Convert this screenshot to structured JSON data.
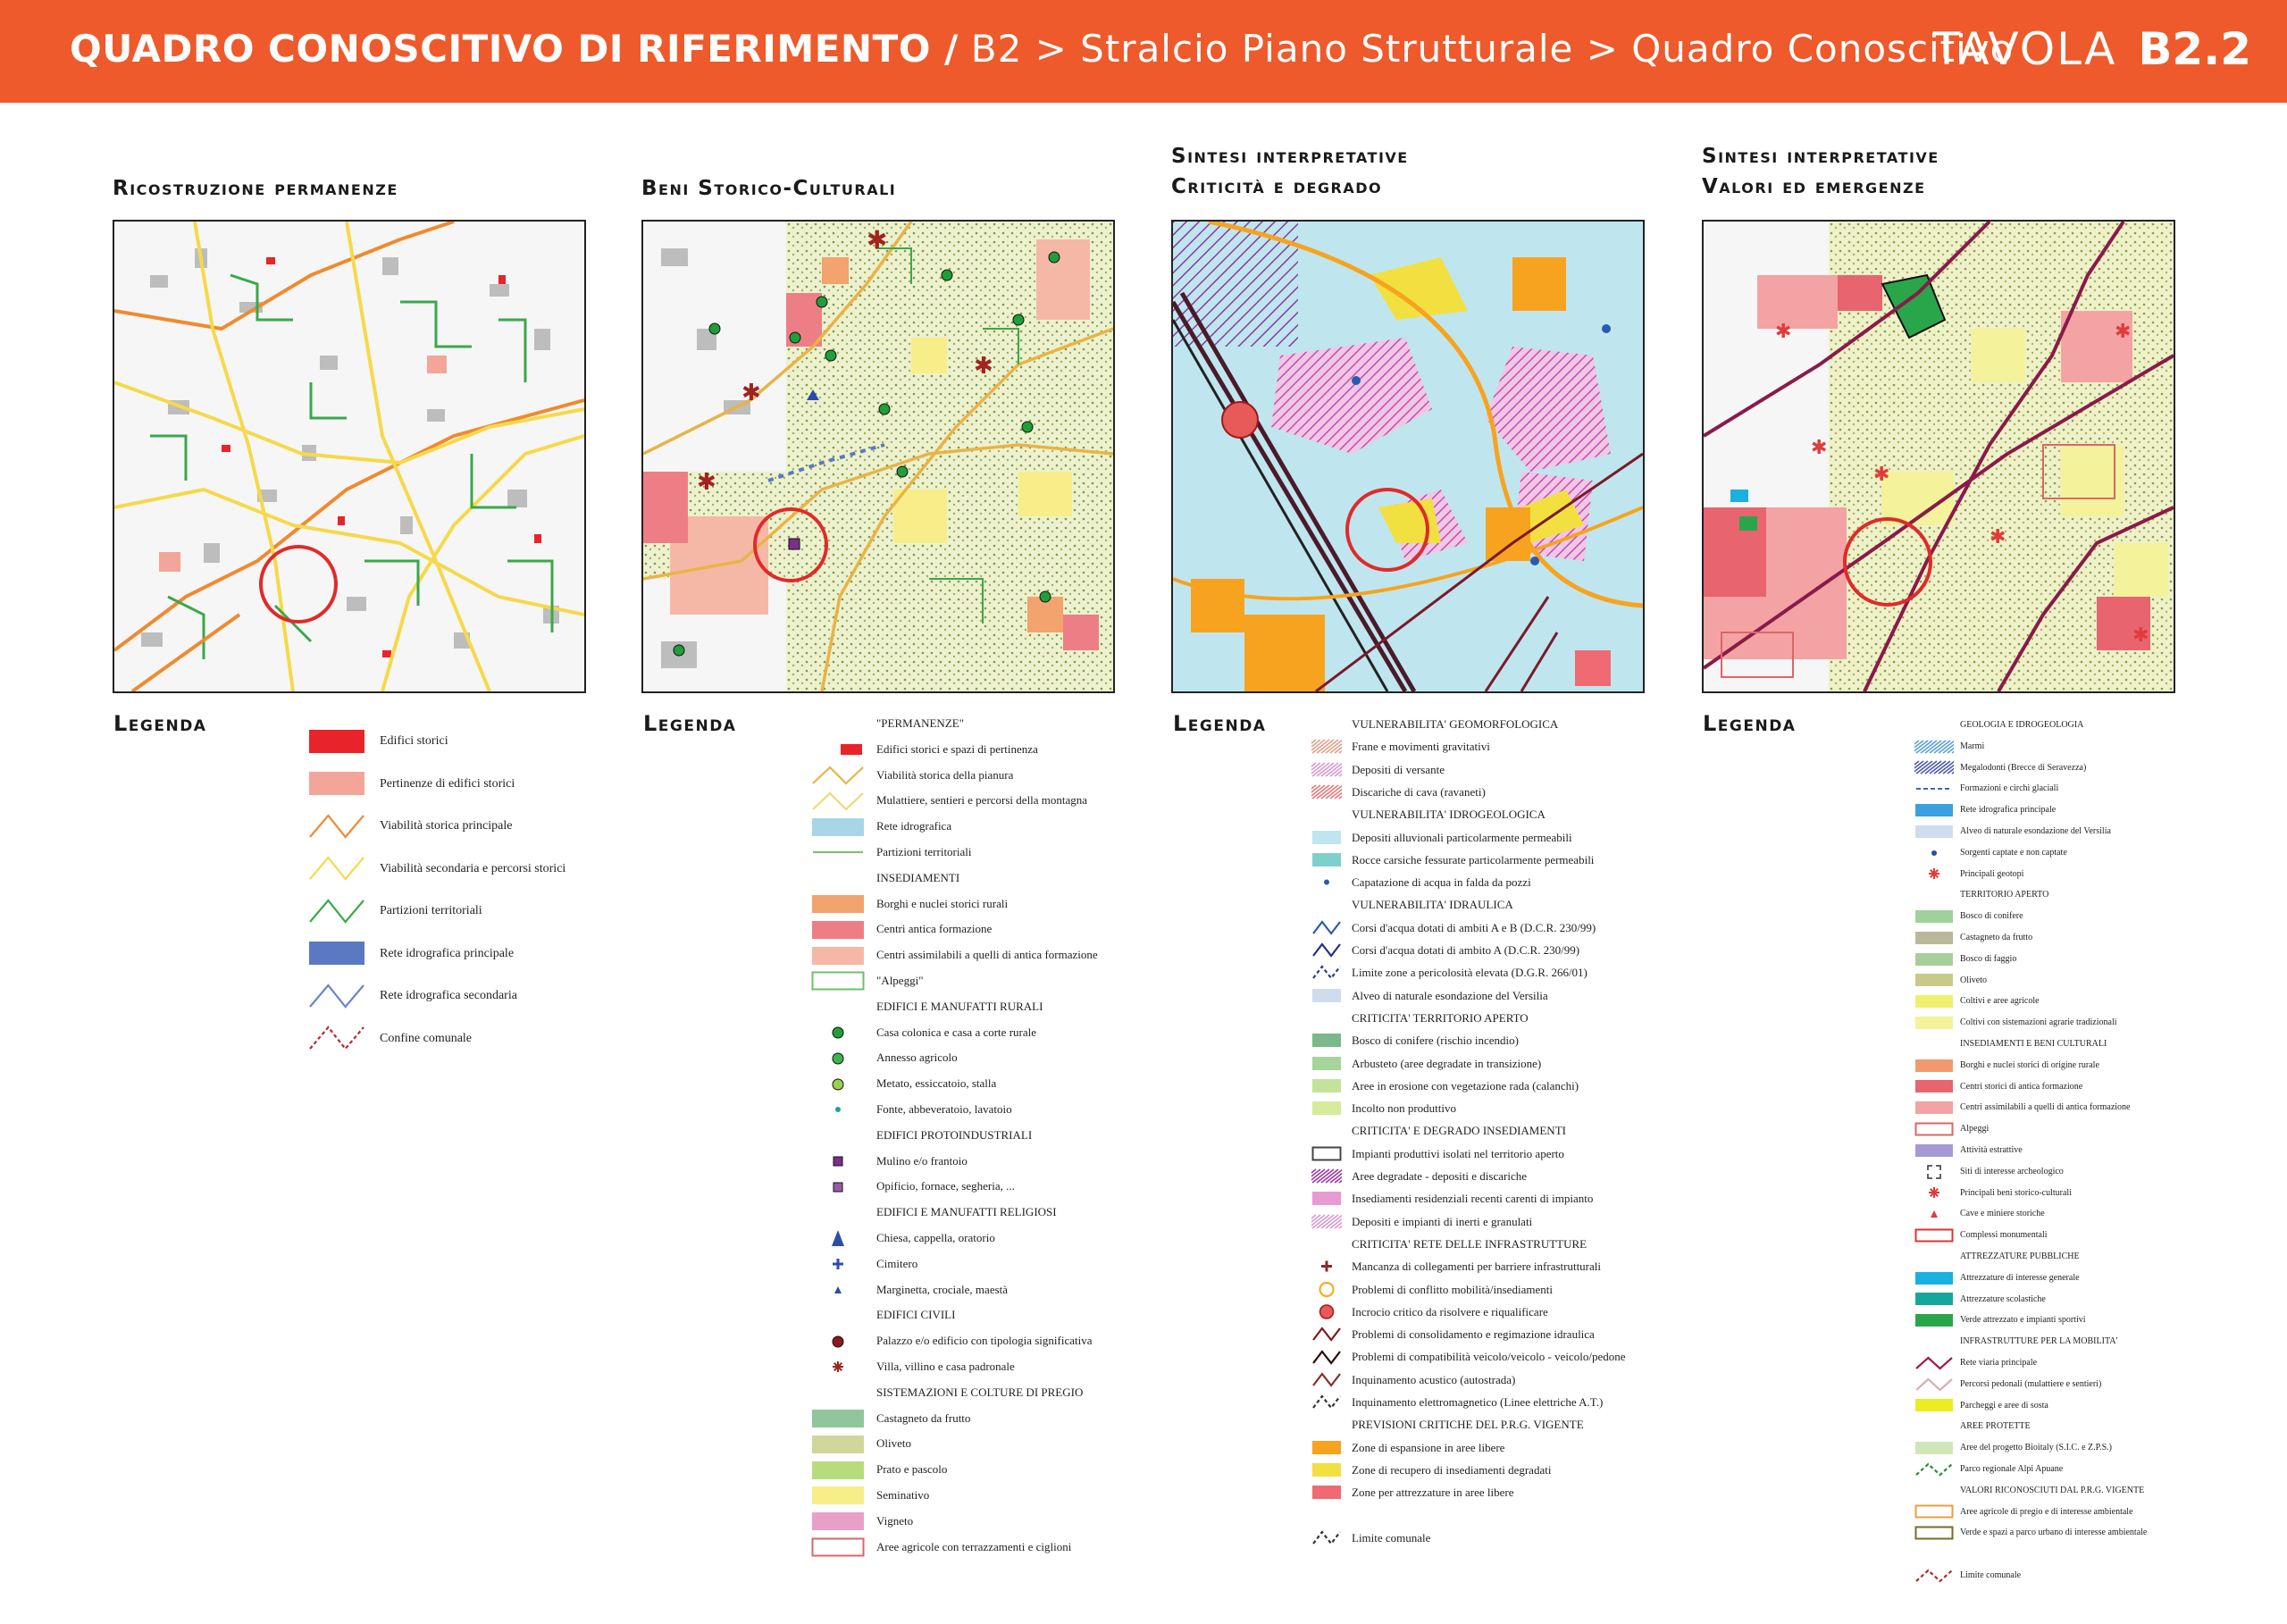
{
  "header": {
    "main_title": "QUADRO CONOSCITIVO DI RIFERIMENTO /",
    "path": "B2 > Stralcio Piano Strutturale > Quadro Conoscitivo",
    "tavola_label": "TAVOLA",
    "tavola_number": "B2.2"
  },
  "panels": [
    {
      "title_1": "",
      "title_2": "Ricostruzione permanenze"
    },
    {
      "title_1": "",
      "title_2": "Beni Storico-Culturali"
    },
    {
      "title_1": "Sintesi interpretative",
      "title_2": "Criticità e degrado"
    },
    {
      "title_1": "Sintesi interpretative",
      "title_2": "Valori ed emergenze"
    }
  ],
  "legend_word": "Legenda",
  "legend1": [
    {
      "label": "Edifici storici",
      "kind": "fill",
      "color": "#e8242a"
    },
    {
      "label": "Pertinenze di edifici storici",
      "kind": "fill",
      "color": "#f3a59a"
    },
    {
      "label": "Viabilità storica principale",
      "kind": "zig",
      "color": "#f08a2e"
    },
    {
      "label": "Viabilità secondaria e percorsi storici",
      "kind": "zig",
      "color": "#f6d94a"
    },
    {
      "label": "Partizioni territoriali",
      "kind": "zig",
      "color": "#3aa84a"
    },
    {
      "label": "Rete idrografica principale",
      "kind": "fill",
      "color": "#5b78c2"
    },
    {
      "label": "Rete idrografica secondaria",
      "kind": "zig",
      "color": "#6a86c8"
    },
    {
      "label": "Confine comunale",
      "kind": "dashzig",
      "color": "#b02a2a"
    }
  ],
  "legend2": [
    {
      "label": "\"PERMANENZE\"",
      "kind": "head"
    },
    {
      "label": "Edifici storici e spazi di pertinenza",
      "kind": "mini",
      "color": "#e8242a"
    },
    {
      "label": "Viabilità storica della pianura",
      "kind": "zig",
      "color": "#e8b446"
    },
    {
      "label": "Mulattiere, sentieri e percorsi della montagna",
      "kind": "zig",
      "color": "#f0d77a"
    },
    {
      "label": "Rete idrografica",
      "kind": "fill",
      "color": "#a8d6e6"
    },
    {
      "label": "Partizioni territoriali",
      "kind": "line",
      "color": "#7bbf6a"
    },
    {
      "label": "INSEDIAMENTI",
      "kind": "head"
    },
    {
      "label": "Borghi e nuclei storici rurali",
      "kind": "fill",
      "color": "#f2a36e"
    },
    {
      "label": "Centri antica formazione",
      "kind": "fill",
      "color": "#ee7e86"
    },
    {
      "label": "Centri assimilabili a quelli di antica formazione",
      "kind": "fill",
      "color": "#f6b8a6"
    },
    {
      "label": "\"Alpeggi\"",
      "kind": "outline",
      "color": "#6cbf6c"
    },
    {
      "label": "EDIFICI E MANUFATTI RURALI",
      "kind": "head"
    },
    {
      "label": "Casa colonica e casa a corte rurale",
      "kind": "dot",
      "color": "#1f9e3a"
    },
    {
      "label": "Annesso agricolo",
      "kind": "dot",
      "color": "#3cb54a"
    },
    {
      "label": "Metato, essiccatoio, stalla",
      "kind": "dot",
      "color": "#9bd04a"
    },
    {
      "label": "Fonte, abbeveratoio, lavatoio",
      "kind": "smalldot",
      "color": "#2a9a9a"
    },
    {
      "label": "EDIFICI PROTOINDUSTRIALI",
      "kind": "head"
    },
    {
      "label": "Mulino e/o frantoio",
      "kind": "square",
      "color": "#7b2f8a"
    },
    {
      "label": "Opificio, fornace, segheria, ...",
      "kind": "square",
      "color": "#9a5aa8"
    },
    {
      "label": "EDIFICI E MANUFATTI RELIGIOSI",
      "kind": "head"
    },
    {
      "label": "Chiesa, cappella, oratorio",
      "kind": "triangle",
      "color": "#2a4ea8"
    },
    {
      "label": "Cimitero",
      "kind": "cross",
      "color": "#2a4ea8"
    },
    {
      "label": "Marginetta, crociale, maestà",
      "kind": "smalltri",
      "color": "#2a4ea8"
    },
    {
      "label": "EDIFICI CIVILI",
      "kind": "head"
    },
    {
      "label": "Palazzo e/o edificio con tipologia significativa",
      "kind": "dot",
      "color": "#8a1a1a"
    },
    {
      "label": "Villa, villino e casa padronale",
      "kind": "star",
      "color": "#a0241f"
    },
    {
      "label": "SISTEMAZIONI E COLTURE DI PREGIO",
      "kind": "head"
    },
    {
      "label": "Castagneto da frutto",
      "kind": "fill",
      "color": "#8fc79a"
    },
    {
      "label": "Oliveto",
      "kind": "fill",
      "color": "#cfd79a"
    },
    {
      "label": "Prato e pascolo",
      "kind": "fill",
      "color": "#b6dc7e"
    },
    {
      "label": "Seminativo",
      "kind": "fill",
      "color": "#f7ee8a"
    },
    {
      "label": "Vigneto",
      "kind": "fill",
      "color": "#e9a0c8"
    },
    {
      "label": "Aree agricole con terrazzamenti e ciglioni",
      "kind": "outline",
      "color": "#d66"
    }
  ],
  "legend3": [
    {
      "label": "VULNERABILITA' GEOMORFOLOGICA",
      "kind": "head"
    },
    {
      "label": "Frane e movimenti gravitativi",
      "kind": "hatch",
      "color": "#e0a08a"
    },
    {
      "label": "Depositi di versante",
      "kind": "hatch",
      "color": "#d49ad0"
    },
    {
      "label": "Discariche di cava (ravaneti)",
      "kind": "hatch",
      "color": "#e27a7a"
    },
    {
      "label": "VULNERABILITA' IDROGEOLOGICA",
      "kind": "head"
    },
    {
      "label": "Depositi alluvionali particolarmente permeabili",
      "kind": "fill",
      "color": "#bfe6ee"
    },
    {
      "label": "Rocce carsiche fessurate particolarmente permeabili",
      "kind": "fill",
      "color": "#7fd0cc"
    },
    {
      "label": "Capatazione di acqua in falda da pozzi",
      "kind": "smalldot",
      "color": "#2a5ab0"
    },
    {
      "label": "VULNERABILITA' IDRAULICA",
      "kind": "head"
    },
    {
      "label": "Corsi d'acqua dotati di ambiti A e B (D.C.R. 230/99)",
      "kind": "zig",
      "color": "#2a5ab0"
    },
    {
      "label": "Corsi d'acqua dotati di ambito A (D.C.R. 230/99)",
      "kind": "zig",
      "color": "#23307a"
    },
    {
      "label": "Limite zone a pericolosità elevata (D.G.R. 266/01)",
      "kind": "dashzig",
      "color": "#2a3a8a"
    },
    {
      "label": "Alveo di naturale esondazione del Versilia",
      "kind": "fill",
      "color": "#cfdcee"
    },
    {
      "label": "CRITICITA' TERRITORIO APERTO",
      "kind": "head"
    },
    {
      "label": "Bosco di conifere (rischio incendio)",
      "kind": "fill",
      "color": "#7bb88a"
    },
    {
      "label": "Arbusteto (aree degradate in transizione)",
      "kind": "fill",
      "color": "#a6d49a"
    },
    {
      "label": "Aree in erosione con vegetazione rada (calanchi)",
      "kind": "fill",
      "color": "#c4e29a"
    },
    {
      "label": "Incolto non produttivo",
      "kind": "fill",
      "color": "#d6ec9a"
    },
    {
      "label": "CRITICITA' E DEGRADO INSEDIAMENTI",
      "kind": "head"
    },
    {
      "label": "Impianti produttivi isolati nel territorio aperto",
      "kind": "outline",
      "color": "#444"
    },
    {
      "label": "Aree degradate - depositi e discariche",
      "kind": "hatch",
      "color": "#9a3aa0"
    },
    {
      "label": "Insediamenti residenziali recenti carenti di impianto",
      "kind": "fill",
      "color": "#e89ad2"
    },
    {
      "label": "Depositi e impianti di inerti e granulati",
      "kind": "hatch",
      "color": "#d79ad2"
    },
    {
      "label": "CRITICITA' RETE DELLE INFRASTRUTTURE",
      "kind": "head"
    },
    {
      "label": "Mancanza di collegamenti per barriere infrastrutturali",
      "kind": "cross",
      "color": "#8a2a2a"
    },
    {
      "label": "Problemi di conflitto mobilità/insediamenti",
      "kind": "ring",
      "color": "#f2b020"
    },
    {
      "label": "Incrocio critico da risolvere e riqualificare",
      "kind": "ringfill",
      "color": "#e85a5a"
    },
    {
      "label": "Problemi di consolidamento e regimazione idraulica",
      "kind": "zig",
      "color": "#7a1a1a"
    },
    {
      "label": "Problemi di compatibilità veicolo/veicolo - veicolo/pedone",
      "kind": "zig",
      "color": "#2a0a0a"
    },
    {
      "label": "Inquinamento acustico (autostrada)",
      "kind": "zig",
      "color": "#8a2a2a"
    },
    {
      "label": "Inquinamento elettromagnetico (Linee elettriche A.T.)",
      "kind": "dashzig",
      "color": "#333"
    },
    {
      "label": "PREVISIONI CRITICHE DEL P.R.G. VIGENTE",
      "kind": "head"
    },
    {
      "label": "Zone di espansione in aree libere",
      "kind": "fill",
      "color": "#f7a320"
    },
    {
      "label": "Zone di recupero di insediamenti degradati",
      "kind": "fill",
      "color": "#f2e040"
    },
    {
      "label": "Zone per attrezzature in aree libere",
      "kind": "fill",
      "color": "#ef6a72"
    },
    {
      "label": "",
      "kind": "blank"
    },
    {
      "label": "Limite comunale",
      "kind": "dashzig",
      "color": "#333"
    }
  ],
  "legend4": [
    {
      "label": "GEOLOGIA E IDROGEOLOGIA",
      "kind": "head"
    },
    {
      "label": "Marmi",
      "kind": "hatch",
      "color": "#5aa0d8"
    },
    {
      "label": "Megalodonti (Brecce di Seravezza)",
      "kind": "hatch",
      "color": "#4a5ab0"
    },
    {
      "label": "Formazioni e circhi glaciali",
      "kind": "dashline",
      "color": "#3a6ab0"
    },
    {
      "label": "Rete idrografica principale",
      "kind": "fill",
      "color": "#3aa0e0"
    },
    {
      "label": "Alveo di naturale esondazione del Versilia",
      "kind": "fill",
      "color": "#cfdcee"
    },
    {
      "label": "Sorgenti captate e non captate",
      "kind": "smalldot",
      "color": "#2a4ea8"
    },
    {
      "label": "Principali geotopi",
      "kind": "star",
      "color": "#e23a3a"
    },
    {
      "label": "TERRITORIO APERTO",
      "kind": "head"
    },
    {
      "label": "Bosco di conifere",
      "kind": "fill",
      "color": "#9fd29a"
    },
    {
      "label": "Castagneto da frutto",
      "kind": "fill",
      "color": "#b9b89a"
    },
    {
      "label": "Bosco di faggio",
      "kind": "fill",
      "color": "#a6cf9a"
    },
    {
      "label": "Oliveto",
      "kind": "fill",
      "color": "#c9c98a"
    },
    {
      "label": "Coltivi e aree agricole",
      "kind": "fill",
      "color": "#f0f070"
    },
    {
      "label": "Coltivi con sistemazioni agrarie tradizionali",
      "kind": "fill",
      "color": "#f4f29a"
    },
    {
      "label": "INSEDIAMENTI E BENI CULTURALI",
      "kind": "head"
    },
    {
      "label": "Borghi e nuclei storici di origine rurale",
      "kind": "fill",
      "color": "#f29a6e"
    },
    {
      "label": "Centri storici di antica formazione",
      "kind": "fill",
      "color": "#e8646e"
    },
    {
      "label": "Centri assimilabili a quelli di antica formazione",
      "kind": "fill",
      "color": "#f3a3a3"
    },
    {
      "label": "Alpeggi",
      "kind": "outline",
      "color": "#d66"
    },
    {
      "label": "Attività estrattive",
      "kind": "fill",
      "color": "#a59ad6"
    },
    {
      "label": "Siti di interesse archeologico",
      "kind": "bracket",
      "color": "#333"
    },
    {
      "label": "Principali beni storico-culturali",
      "kind": "star",
      "color": "#e23a3a"
    },
    {
      "label": "Cave e miniere storiche",
      "kind": "smalltri",
      "color": "#e23a3a"
    },
    {
      "label": "Complessi monumentali",
      "kind": "outline",
      "color": "#d33"
    },
    {
      "label": "ATTREZZATURE PUBBLICHE",
      "kind": "head"
    },
    {
      "label": "Attrezzature di interesse generale",
      "kind": "fill",
      "color": "#1ab0e0"
    },
    {
      "label": "Attrezzature scolastiche",
      "kind": "fill",
      "color": "#17a79a"
    },
    {
      "label": "Verde attrezzato e impianti sportivi",
      "kind": "fill",
      "color": "#29a64a"
    },
    {
      "label": "INFRASTRUTTURE PER LA MOBILITA'",
      "kind": "head"
    },
    {
      "label": "Rete viaria principale",
      "kind": "zig",
      "color": "#a01a4a"
    },
    {
      "label": "Percorsi pedonali (mulattiere e sentieri)",
      "kind": "zig",
      "color": "#d8b0b0"
    },
    {
      "label": "Parcheggi e aree di sosta",
      "kind": "fill",
      "color": "#ecec20"
    },
    {
      "label": "AREE PROTETTE",
      "kind": "head"
    },
    {
      "label": "Aree del progetto Bioitaly (S.I.C. e Z.P.S.)",
      "kind": "fill",
      "color": "#cfe7b8"
    },
    {
      "label": "Parco regionale Alpi Apuane",
      "kind": "dashzig",
      "color": "#2a8a3a"
    },
    {
      "label": "VALORI RICONOSCIUTI DAL P.R.G. VIGENTE",
      "kind": "head"
    },
    {
      "label": "Aree agricole di pregio e di interesse ambientale",
      "kind": "outline",
      "color": "#e8a040"
    },
    {
      "label": "Verde e spazi a parco urbano di interesse ambientale",
      "kind": "outline",
      "color": "#7a6a2a"
    },
    {
      "label": "",
      "kind": "blank"
    },
    {
      "label": "Limite comunale",
      "kind": "dashzig",
      "color": "#b02a2a"
    }
  ]
}
